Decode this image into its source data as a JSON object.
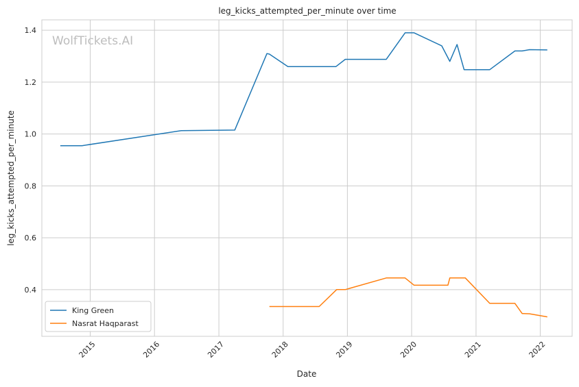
{
  "chart_data": {
    "type": "line",
    "title": "leg_kicks_attempted_per_minute over time",
    "xlabel": "Date",
    "ylabel": "leg_kicks_attempted_per_minute",
    "watermark": "WolfTickets.AI",
    "grid": true,
    "legend_position": "lower-left",
    "xlim": [
      "2014-04-01",
      "2022-07-01"
    ],
    "ylim": [
      0.22,
      1.44
    ],
    "x_ticks": [
      "2015",
      "2016",
      "2017",
      "2018",
      "2019",
      "2020",
      "2021",
      "2022"
    ],
    "y_ticks": [
      "0.4",
      "0.6",
      "0.8",
      "1.0",
      "1.2",
      "1.4"
    ],
    "colors": {
      "grid": "#cccccc",
      "axis_frame": "#cccccc",
      "watermark": "#bdbdbd"
    },
    "series": [
      {
        "name": "King Green",
        "color": "#1f77b4",
        "points": [
          [
            "2014-07-15",
            0.955
          ],
          [
            "2014-11-15",
            0.955
          ],
          [
            "2016-06-01",
            1.013
          ],
          [
            "2017-04-01",
            1.015
          ],
          [
            "2017-10-01",
            1.31
          ],
          [
            "2017-10-15",
            1.308
          ],
          [
            "2018-01-28",
            1.26
          ],
          [
            "2018-10-28",
            1.26
          ],
          [
            "2018-12-20",
            1.288
          ],
          [
            "2019-08-10",
            1.288
          ],
          [
            "2019-11-25",
            1.39
          ],
          [
            "2020-01-15",
            1.39
          ],
          [
            "2020-06-20",
            1.34
          ],
          [
            "2020-08-05",
            1.28
          ],
          [
            "2020-09-15",
            1.345
          ],
          [
            "2020-10-25",
            1.248
          ],
          [
            "2021-03-20",
            1.248
          ],
          [
            "2021-08-10",
            1.32
          ],
          [
            "2021-09-20",
            1.32
          ],
          [
            "2021-11-01",
            1.325
          ],
          [
            "2022-02-10",
            1.324
          ]
        ]
      },
      {
        "name": "Nasrat Haqparast",
        "color": "#ff7f0e",
        "points": [
          [
            "2017-10-15",
            0.335
          ],
          [
            "2018-07-25",
            0.335
          ],
          [
            "2018-11-01",
            0.4
          ],
          [
            "2018-12-20",
            0.4
          ],
          [
            "2019-08-10",
            0.445
          ],
          [
            "2019-11-25",
            0.445
          ],
          [
            "2020-01-15",
            0.417
          ],
          [
            "2020-07-25",
            0.417
          ],
          [
            "2020-08-05",
            0.445
          ],
          [
            "2020-11-01",
            0.445
          ],
          [
            "2021-03-20",
            0.347
          ],
          [
            "2021-08-10",
            0.347
          ],
          [
            "2021-09-20",
            0.308
          ],
          [
            "2021-11-01",
            0.307
          ],
          [
            "2022-02-10",
            0.295
          ]
        ]
      }
    ]
  }
}
